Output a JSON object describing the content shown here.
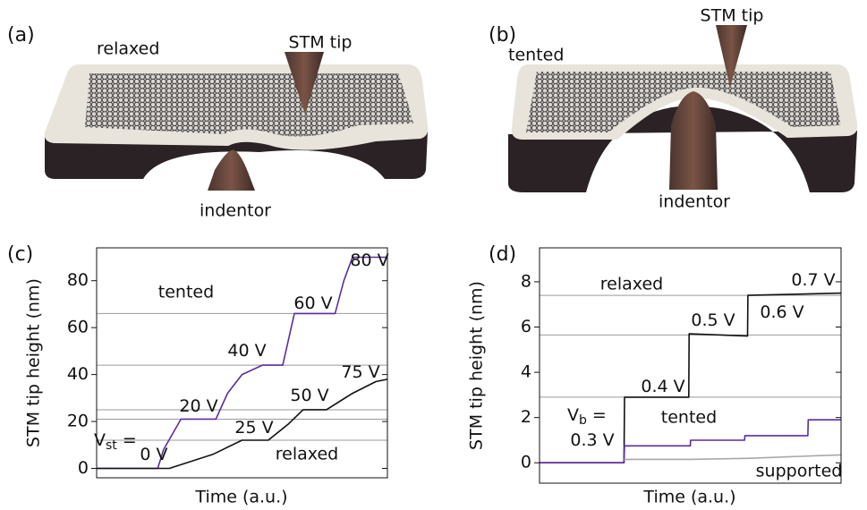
{
  "illustrations": [
    {
      "panel": "(a)",
      "state": "relaxed",
      "tip": "STM tip",
      "indentor": "indentor",
      "state_color": "#111111"
    },
    {
      "panel": "(b)",
      "state": "tented",
      "tip": "STM tip",
      "indentor": "indentor",
      "state_color": "#5b2d9e"
    }
  ],
  "chart_data": [
    {
      "type": "line",
      "panel": "(c)",
      "x_label": "Time (a.u.)",
      "y_label": "STM tip height (nm)",
      "xlim": [
        0,
        100
      ],
      "ylim": [
        -4,
        94
      ],
      "yticks": [
        0,
        20,
        40,
        60,
        80
      ],
      "reference_lines": [
        21,
        44,
        66,
        12,
        25
      ],
      "reference_color": "#9a9a9a",
      "series": [
        {
          "name": "tented",
          "color": "#5b2d9e",
          "x": [
            0,
            21,
            23,
            29,
            41,
            45,
            50,
            57,
            64,
            68,
            82,
            85,
            88,
            100
          ],
          "values": [
            0,
            0,
            8,
            21,
            21,
            32,
            40,
            44,
            44,
            66,
            66,
            80,
            90,
            90
          ]
        },
        {
          "name": "relaxed",
          "color": "#111111",
          "x": [
            0,
            25,
            30,
            40,
            50,
            59,
            66,
            71,
            79,
            88,
            96,
            100
          ],
          "values": [
            0,
            0,
            2,
            6,
            12,
            12,
            19,
            25,
            25,
            32,
            37,
            38
          ]
        }
      ],
      "annotations": [
        {
          "text": "20 V",
          "color": "#5b2d9e"
        },
        {
          "text": "40 V",
          "color": "#5b2d9e"
        },
        {
          "text": "60 V",
          "color": "#5b2d9e"
        },
        {
          "text": "80 V",
          "color": "#5b2d9e"
        },
        {
          "text": "0 V",
          "color": "#111111"
        },
        {
          "text": "25 V",
          "color": "#111111"
        },
        {
          "text": "50 V",
          "color": "#111111"
        },
        {
          "text": "75 V",
          "color": "#111111"
        },
        {
          "text": "V",
          "sub": "st",
          "suffix": " =",
          "color": "#111111"
        }
      ]
    },
    {
      "type": "line",
      "panel": "(d)",
      "x_label": "Time (a.u.)",
      "y_label": "STM tip height (nm)",
      "xlim": [
        0,
        100
      ],
      "ylim": [
        -0.9,
        9.5
      ],
      "yticks": [
        0,
        2,
        4,
        6,
        8
      ],
      "reference_lines": [
        2.9,
        5.65,
        7.4
      ],
      "reference_color": "#9a9a9a",
      "series": [
        {
          "name": "relaxed",
          "color": "#111111",
          "x": [
            0,
            28,
            28.2,
            49.5,
            49.6,
            69,
            69.1,
            100
          ],
          "values": [
            0,
            0,
            2.9,
            2.9,
            5.7,
            5.6,
            7.4,
            7.5
          ]
        },
        {
          "name": "tented",
          "color": "#5b2d9e",
          "x": [
            0,
            28,
            28.2,
            50,
            50.1,
            68,
            68.1,
            89,
            89.1,
            100
          ],
          "values": [
            0,
            0,
            0.75,
            0.75,
            1.0,
            1.0,
            1.2,
            1.2,
            1.9,
            1.9
          ]
        },
        {
          "name": "supported",
          "color": "#a8a8a8",
          "x": [
            28,
            50,
            70,
            89,
            100
          ],
          "values": [
            0.15,
            0.15,
            0.2,
            0.3,
            0.35
          ]
        }
      ],
      "annotations": [
        {
          "text": "0.4 V",
          "color": "#111111"
        },
        {
          "text": "0.5 V",
          "color": "#111111"
        },
        {
          "text": "0.6 V",
          "color": "#111111"
        },
        {
          "text": "0.7 V",
          "color": "#111111"
        },
        {
          "text": "0.3 V",
          "color": "#111111"
        },
        {
          "text": "V",
          "sub": "b",
          "suffix": " =",
          "color": "#111111"
        }
      ]
    }
  ]
}
